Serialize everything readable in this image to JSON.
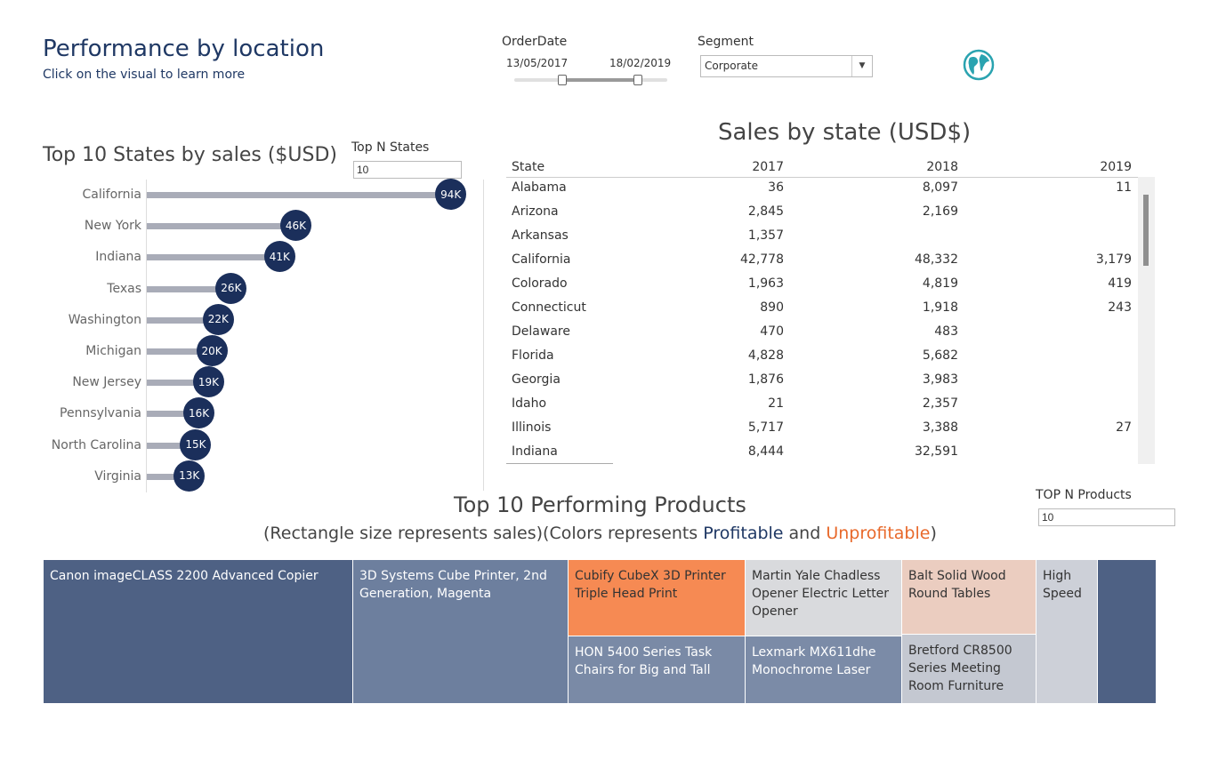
{
  "header": {
    "title": "Performance by location",
    "subtitle": "Click on the visual to learn more"
  },
  "filters": {
    "order_date": {
      "label": "OrderDate",
      "start": "13/05/2017",
      "end": "18/02/2019"
    },
    "segment": {
      "label": "Segment",
      "value": "Corporate"
    },
    "globe_icon": "globe-icon"
  },
  "top_states": {
    "title": "Top 10 States by sales ($USD)",
    "param_label": "Top N States",
    "param_value": "10"
  },
  "chart_data": {
    "type": "bar",
    "title": "Top 10 States by sales ($USD)",
    "orientation": "horizontal",
    "categories": [
      "California",
      "New York",
      "Indiana",
      "Texas",
      "Washington",
      "Michigan",
      "New Jersey",
      "Pennsylvania",
      "North Carolina",
      "Virginia"
    ],
    "values": [
      94,
      46,
      41,
      26,
      22,
      20,
      19,
      16,
      15,
      13
    ],
    "data_labels": [
      "94K",
      "46K",
      "41K",
      "26K",
      "22K",
      "20K",
      "19K",
      "16K",
      "15K",
      "13K"
    ],
    "xlim": [
      0,
      100
    ]
  },
  "sales_table": {
    "title": "Sales by state (USD$)",
    "columns": [
      "State",
      "2017",
      "2018",
      "2019"
    ],
    "rows": [
      [
        "Alabama",
        "36",
        "8,097",
        "11"
      ],
      [
        "Arizona",
        "2,845",
        "2,169",
        ""
      ],
      [
        "Arkansas",
        "1,357",
        "",
        ""
      ],
      [
        "California",
        "42,778",
        "48,332",
        "3,179"
      ],
      [
        "Colorado",
        "1,963",
        "4,819",
        "419"
      ],
      [
        "Connecticut",
        "890",
        "1,918",
        "243"
      ],
      [
        "Delaware",
        "470",
        "483",
        ""
      ],
      [
        "Florida",
        "4,828",
        "5,682",
        ""
      ],
      [
        "Georgia",
        "1,876",
        "3,983",
        ""
      ],
      [
        "Idaho",
        "21",
        "2,357",
        ""
      ],
      [
        "Illinois",
        "5,717",
        "3,388",
        "27"
      ],
      [
        "Indiana",
        "8,444",
        "32,591",
        ""
      ]
    ]
  },
  "products": {
    "title": "Top 10 Performing Products",
    "subtitle_prefix": "(Rectangle size represents sales)(Colors represents ",
    "profitable_word": "Profitable",
    "and_word": " and ",
    "unprofitable_word": "Unprofitable",
    "subtitle_suffix": ")",
    "param_label": "TOP N Products",
    "param_value": "10",
    "colors": {
      "profitable": "#1f3864",
      "unprofitable": "#e8692b"
    },
    "items": [
      {
        "label": "Canon imageCLASS 2200 Advanced Copier",
        "color": "#4e6184"
      },
      {
        "label": "3D Systems Cube Printer, 2nd Generation, Magenta",
        "color": "#6d7f9e"
      },
      {
        "label": "Cubify CubeX 3D Printer Triple Head Print",
        "color": "#f68a53"
      },
      {
        "label": "HON 5400 Series Task Chairs for Big and Tall",
        "color": "#7a8aa6"
      },
      {
        "label": "Martin Yale Chadless Opener Electric Letter Opener",
        "color": "#d9dadd"
      },
      {
        "label": "Lexmark MX611dhe Monochrome Laser",
        "color": "#7b8ba7"
      },
      {
        "label": "Balt Solid Wood Round Tables",
        "color": "#ebcdc0"
      },
      {
        "label": "Bretford CR8500 Series Meeting Room Furniture",
        "color": "#c4c8d1"
      },
      {
        "label": "High Speed",
        "color": "#cdd0d8"
      },
      {
        "label": "",
        "color": "#4e6184"
      }
    ]
  }
}
